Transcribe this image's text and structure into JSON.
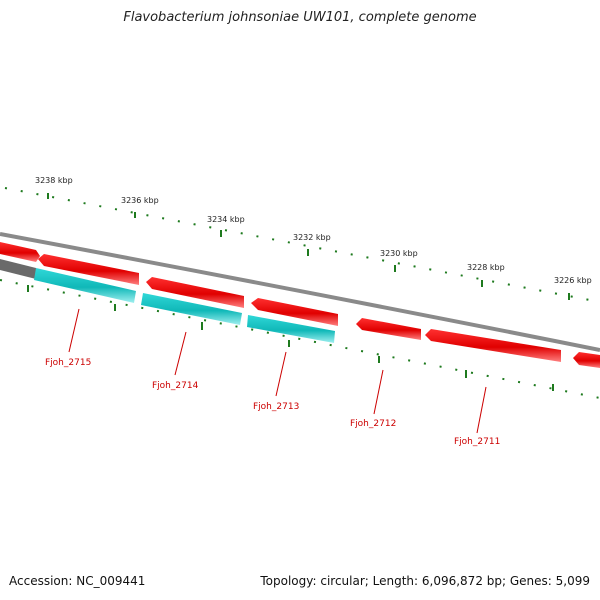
{
  "title": "Flavobacterium johnsoniae UW101, complete genome",
  "footer": {
    "accession": "Accession: NC_009441",
    "topology": "Topology: circular; Length: 6,096,872 bp; Genes: 5,099"
  },
  "ticks": [
    "3238 kbp",
    "3236 kbp",
    "3234 kbp",
    "3232 kbp",
    "3230 kbp",
    "3228 kbp",
    "3226 kbp"
  ],
  "gene_labels": [
    "Fjoh_2715",
    "Fjoh_2714",
    "Fjoh_2713",
    "Fjoh_2712",
    "Fjoh_2711"
  ],
  "colors": {
    "backbone": "#8a8a8a",
    "forward_gene": "#e00000",
    "cds": "#20c8c8",
    "tick": "#1e7a1e",
    "label": "#cc0000"
  }
}
